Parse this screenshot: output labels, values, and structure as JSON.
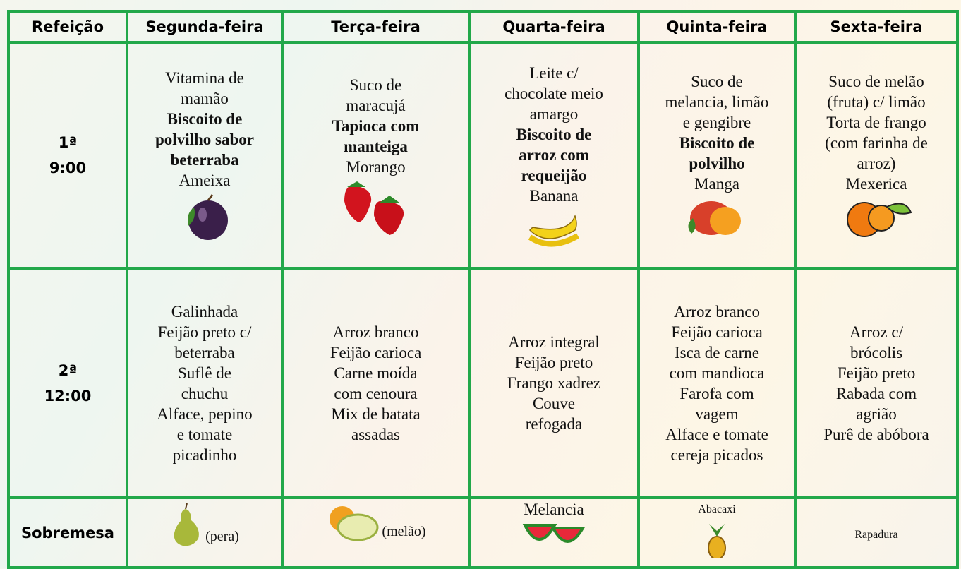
{
  "table": {
    "header": [
      "Refeição",
      "Segunda-feira",
      "Terça-feira",
      "Quarta-feira",
      "Quinta-feira",
      "Sexta-feira"
    ],
    "rows": [
      {
        "label": [
          "1ª",
          "9:00"
        ],
        "cells": [
          {
            "before": [
              "Vitamina de",
              "mamão"
            ],
            "bold": [
              "Biscoito de",
              "polvilho sabor",
              "beterraba"
            ],
            "after": [
              "Ameixa"
            ]
          },
          {
            "before": [
              "Suco de",
              "maracujá"
            ],
            "bold": [
              "Tapioca com",
              "manteiga"
            ],
            "after": [
              "Morango"
            ]
          },
          {
            "before": [
              "Leite c/",
              "chocolate meio",
              "amargo"
            ],
            "bold": [
              "Biscoito de",
              "arroz com",
              "requeijão"
            ],
            "after": [
              "Banana"
            ]
          },
          {
            "before": [
              "Suco de",
              "melancia, limão",
              "e gengibre"
            ],
            "bold": [
              "Biscoito de",
              "polvilho"
            ],
            "after": [
              "Manga"
            ]
          },
          {
            "before": [
              "Suco de melão",
              "(fruta) c/ limão",
              "Torta de frango",
              "(com farinha de",
              "arroz)",
              "Mexerica"
            ]
          }
        ]
      },
      {
        "label": [
          "2ª",
          "12:00"
        ],
        "cells": [
          {
            "before": [
              "Galinhada",
              "Feijão preto c/",
              "beterraba",
              "Suflê de",
              "chuchu",
              "Alface, pepino",
              "e tomate",
              "picadinho"
            ]
          },
          {
            "before": [
              "Arroz branco",
              "Feijão carioca",
              "Carne moída",
              "com cenoura",
              "Mix de batata",
              "assadas"
            ]
          },
          {
            "before": [
              "Arroz integral",
              "Feijão preto",
              "Frango xadrez",
              "Couve",
              "refogada"
            ]
          },
          {
            "before": [
              "Arroz branco",
              "Feijão carioca",
              "Isca de carne",
              "com mandioca",
              "Farofa com",
              "vagem",
              "Alface e tomate",
              "cereja picados"
            ]
          },
          {
            "before": [
              "Arroz c/",
              "brócolis",
              "Feijão preto",
              "Rabada com",
              "agrião",
              "Purê de abóbora"
            ]
          }
        ]
      },
      {
        "label": [
          "Sobremesa"
        ],
        "cells": [
          {
            "before": [
              "(pera)"
            ]
          },
          {
            "before": [
              "(melão)"
            ]
          },
          {
            "before": [
              "Melancia"
            ]
          },
          {
            "before": [
              "Abacaxi"
            ]
          },
          {
            "before": [
              "Rapadura"
            ]
          }
        ]
      }
    ]
  }
}
